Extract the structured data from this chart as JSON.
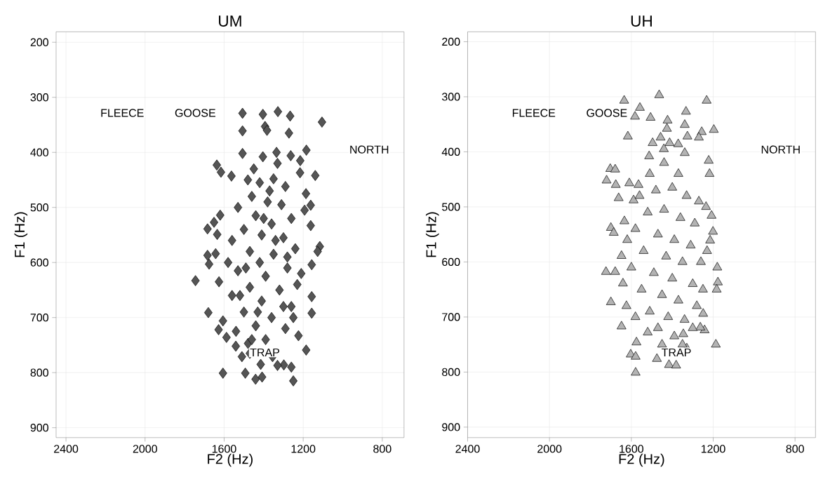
{
  "chart_data": [
    {
      "type": "scatter",
      "title": "UM",
      "xlabel": "F2 (Hz)",
      "ylabel": "F1 (Hz)",
      "color": "#555555",
      "marker": "diamond",
      "grid": true,
      "xlim": [
        2450,
        690
      ],
      "ylim": [
        918,
        181
      ],
      "xticks": [
        2400,
        2000,
        1600,
        1200,
        800
      ],
      "yticks": [
        200,
        300,
        400,
        500,
        600,
        700,
        800,
        900
      ],
      "annotations": [
        "FLEECE",
        "GOOSE",
        "NORTH",
        "TRAP"
      ],
      "x": [
        1507,
        1404,
        1328,
        1266,
        1105,
        1507,
        1393,
        1383,
        1272,
        1184,
        1507,
        1335,
        1139,
        1637,
        1616,
        1563,
        1216,
        1215,
        1263,
        1404,
        1684,
        1635,
        1620,
        1651,
        1684,
        1676,
        1643,
        1745,
        1626,
        1680,
        1628,
        1606,
        1588,
        1606,
        1493,
        1441,
        1408,
        1415,
        1298,
        1260,
        1250,
        1185,
        1157,
        1157,
        1116,
        1127,
        1157,
        1162,
        1162,
        1193,
        1186,
        1224,
        1510,
        1355,
        1541,
        1479,
        1480,
        1420,
        1350,
        1290,
        1460,
        1380,
        1310,
        1530,
        1440,
        1260,
        1360,
        1500,
        1410,
        1300,
        1560,
        1240,
        1470,
        1350,
        1420,
        1280,
        1530,
        1390,
        1230,
        1470,
        1320,
        1560,
        1410,
        1260,
        1500,
        1360,
        1440,
        1290,
        1540,
        1390,
        1330,
        1470,
        1250,
        1580,
        1210,
        1450,
        1330,
        1520,
        1370,
        1280,
        1430,
        1490,
        1340,
        1400,
        1300,
        1460
      ],
      "values": [
        329,
        331,
        326,
        334,
        345,
        361,
        353,
        360,
        365,
        396,
        402,
        400,
        442,
        423,
        436,
        443,
        437,
        415,
        406,
        408,
        539,
        549,
        514,
        527,
        587,
        603,
        584,
        633,
        635,
        691,
        722,
        706,
        736,
        801,
        801,
        812,
        808,
        785,
        786,
        790,
        815,
        759,
        662,
        692,
        571,
        580,
        604,
        533,
        496,
        505,
        475,
        733,
        771,
        771,
        752,
        747,
        450,
        455,
        448,
        462,
        480,
        490,
        495,
        500,
        515,
        520,
        530,
        540,
        550,
        555,
        560,
        575,
        580,
        585,
        600,
        610,
        615,
        625,
        640,
        645,
        650,
        660,
        670,
        680,
        690,
        700,
        715,
        720,
        725,
        740,
        787,
        765,
        700,
        600,
        620,
        430,
        420,
        660,
        470,
        590,
        690,
        610,
        560,
        520,
        680,
        740
      ]
    },
    {
      "type": "scatter",
      "title": "UH",
      "xlabel": "F2 (Hz)",
      "ylabel": "F1 (Hz)",
      "color": "#b3b3b3",
      "marker": "triangle",
      "grid": true,
      "xlim": [
        2400,
        700
      ],
      "ylim": [
        919,
        182
      ],
      "xticks": [
        2400,
        2000,
        1600,
        1200,
        800
      ],
      "yticks": [
        200,
        300,
        400,
        500,
        600,
        700,
        800,
        900
      ],
      "annotations": [
        "FLEECE",
        "GOOSE",
        "NORTH",
        "TRAP"
      ],
      "x": [
        1635,
        1464,
        1232,
        1558,
        1582,
        1506,
        1333,
        1423,
        1339,
        1426,
        1617,
        1197,
        1256,
        1326,
        1270,
        1457,
        1496,
        1413,
        1371,
        1441,
        1339,
        1513,
        1222,
        1703,
        1679,
        1721,
        1676,
        1610,
        1565,
        1218,
        1662,
        1589,
        1700,
        1686,
        1724,
        1679,
        1700,
        1648,
        1575,
        1603,
        1579,
        1579,
        1475,
        1416,
        1381,
        1329,
        1187,
        1180,
        1177,
        1183,
        1215,
        1201,
        1208,
        1235,
        1242,
        1263,
        1249,
        1634,
        1648,
        1641,
        1624,
        1520,
        1346,
        1560,
        1480,
        1400,
        1330,
        1270,
        1520,
        1440,
        1360,
        1290,
        1580,
        1470,
        1390,
        1310,
        1540,
        1430,
        1350,
        1260,
        1600,
        1490,
        1400,
        1300,
        1550,
        1450,
        1370,
        1280,
        1510,
        1420,
        1340,
        1580,
        1470,
        1390,
        1300,
        1440,
        1370,
        1510,
        1230,
        1620,
        1250,
        1350,
        1450
      ],
      "values": [
        307,
        297,
        307,
        320,
        336,
        338,
        327,
        343,
        351,
        358,
        372,
        360,
        364,
        372,
        374,
        374,
        384,
        384,
        386,
        395,
        402,
        408,
        416,
        431,
        432,
        452,
        460,
        457,
        460,
        440,
        484,
        488,
        538,
        547,
        618,
        618,
        673,
        717,
        746,
        768,
        772,
        801,
        776,
        787,
        788,
        757,
        750,
        610,
        637,
        650,
        561,
        545,
        516,
        500,
        724,
        719,
        694,
        526,
        589,
        639,
        680,
        728,
        731,
        480,
        470,
        465,
        480,
        490,
        510,
        505,
        520,
        530,
        540,
        550,
        560,
        570,
        580,
        590,
        600,
        600,
        610,
        620,
        630,
        640,
        650,
        660,
        670,
        680,
        690,
        700,
        705,
        700,
        720,
        735,
        720,
        420,
        440,
        440,
        580,
        560,
        650,
        750,
        750
      ]
    }
  ]
}
